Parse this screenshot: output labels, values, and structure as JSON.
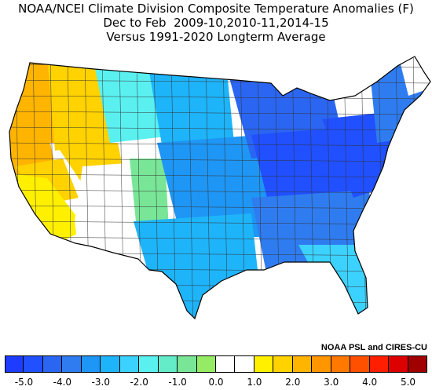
{
  "title": {
    "line1": "NOAA/NCEI Climate Division Composite Temperature Anomalies (F)",
    "line2": "Dec to Feb  2009-10,2010-11,2014-15",
    "line3": "Versus 1991-2020 Longterm Average"
  },
  "credit": "NOAA PSL and CIRES-CU",
  "legend": {
    "colors": [
      "#1e3cff",
      "#2050ff",
      "#2a66f2",
      "#2f7cf0",
      "#1e96f5",
      "#1eb4fa",
      "#3cd2ff",
      "#5af0f0",
      "#64ebc8",
      "#78e696",
      "#96eb64",
      "#ffffff",
      "#ffffff",
      "#fff000",
      "#ffd200",
      "#ffb400",
      "#ff9600",
      "#ff7800",
      "#ff5000",
      "#ff1e00",
      "#dc0000",
      "#a00000"
    ],
    "ticks": [
      "-5.0",
      "-4.0",
      "-3.0",
      "-2.0",
      "-1.0",
      "0.0",
      "1.0",
      "2.0",
      "3.0",
      "4.0",
      "5.0"
    ]
  },
  "map_regions": [
    {
      "region": "pacific-northwest-coast",
      "color": "#ffb400"
    },
    {
      "region": "pacific-northwest-inland",
      "color": "#ffd200"
    },
    {
      "region": "california-north",
      "color": "#ffb400"
    },
    {
      "region": "california-central",
      "color": "#ffd200"
    },
    {
      "region": "california-south",
      "color": "#fff000"
    },
    {
      "region": "great-basin",
      "color": "#ffd200"
    },
    {
      "region": "utah-arizona",
      "color": "#ffffff"
    },
    {
      "region": "colorado-west",
      "color": "#78e696"
    },
    {
      "region": "montana",
      "color": "#5af0f0"
    },
    {
      "region": "dakotas",
      "color": "#1eb4fa"
    },
    {
      "region": "central-plains",
      "color": "#1e96f5"
    },
    {
      "region": "texas-gulf",
      "color": "#1eb4fa"
    },
    {
      "region": "great-lakes",
      "color": "#2a66f2"
    },
    {
      "region": "ohio-valley",
      "color": "#2050ff"
    },
    {
      "region": "southeast",
      "color": "#2f7cf0"
    },
    {
      "region": "florida",
      "color": "#3cd2ff"
    },
    {
      "region": "mid-atlantic",
      "color": "#2050ff"
    },
    {
      "region": "new-england",
      "color": "#2f7cf0"
    },
    {
      "region": "northern-maine",
      "color": "#ffffff"
    }
  ]
}
